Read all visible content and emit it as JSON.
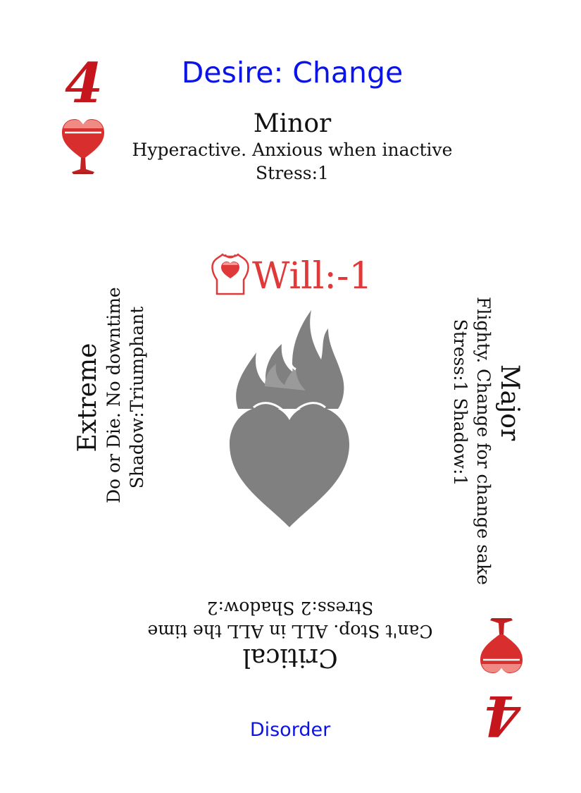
{
  "card": {
    "rank": "4",
    "suit_icon": "heart-goblet-icon",
    "title": "Desire: Change",
    "footer": "Disorder",
    "will": {
      "icon": "torso-heart-icon",
      "label": "Will:-1"
    },
    "emblem_icon": "flaming-heart-icon",
    "levels": {
      "minor": {
        "heading": "Minor",
        "lines": [
          "Hyperactive. Anxious when inactive",
          "Stress:1"
        ]
      },
      "major": {
        "heading": "Major",
        "lines": [
          "Flighty. Change for change sake",
          "Stress:1 Shadow:1"
        ]
      },
      "critical": {
        "heading": "Critical",
        "lines": [
          "Can't Stop. ALL in ALL the time",
          "Stress:2 Shadow:2"
        ]
      },
      "extreme": {
        "heading": "Extreme",
        "lines": [
          "Do or Die. No downtime",
          "Shadow:Triumphant"
        ]
      }
    }
  },
  "colors": {
    "rank": "#c4161c",
    "title": "#0a14e6",
    "footer": "#0a14e6",
    "will": "#e0393a",
    "suit": "#d92e2e",
    "emblem": "#808080",
    "text": "#111111"
  }
}
